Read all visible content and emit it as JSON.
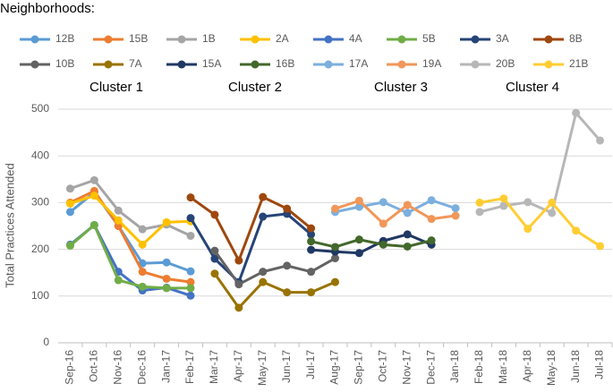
{
  "chart_data": {
    "type": "line",
    "legend_title": "Neighborhoods:",
    "annotations": [
      "Cluster 1",
      "Cluster 2",
      "Cluster 3",
      "Cluster 4"
    ],
    "y_label": "Total Practices Attended",
    "categories": [
      "Sep-16",
      "Oct-16",
      "Nov-16",
      "Dec-16",
      "Jan-17",
      "Feb-17",
      "Mar-17",
      "Apr-17",
      "May-17",
      "Jun-17",
      "Jul-17",
      "Aug-17",
      "Sep-17",
      "Oct-17",
      "Nov-17",
      "Dec-17",
      "Jan-18",
      "Feb-18",
      "Mar-18",
      "Apr-18",
      "May-18",
      "Jun-18",
      "Jul-18"
    ],
    "ylim": [
      0,
      500
    ],
    "yticks": [
      0,
      100,
      200,
      300,
      400,
      500
    ],
    "grid": true,
    "series": [
      {
        "name": "12B",
        "color": "#5b9bd5",
        "values": [
          280,
          322,
          250,
          170,
          172,
          153,
          null,
          null,
          null,
          null,
          null,
          null,
          null,
          null,
          null,
          null,
          null,
          null,
          null,
          null,
          null,
          null,
          null
        ]
      },
      {
        "name": "15B",
        "color": "#ed7d31",
        "values": [
          300,
          325,
          250,
          152,
          137,
          130,
          null,
          null,
          null,
          null,
          null,
          null,
          null,
          null,
          null,
          null,
          null,
          null,
          null,
          null,
          null,
          null,
          null
        ]
      },
      {
        "name": "1B",
        "color": "#a5a5a5",
        "values": [
          330,
          348,
          283,
          243,
          253,
          229,
          null,
          null,
          null,
          null,
          null,
          null,
          null,
          null,
          null,
          null,
          null,
          null,
          null,
          null,
          null,
          null,
          null
        ]
      },
      {
        "name": "2A",
        "color": "#ffc000",
        "values": [
          298,
          315,
          262,
          210,
          258,
          260,
          null,
          null,
          null,
          null,
          null,
          null,
          null,
          null,
          null,
          null,
          null,
          null,
          null,
          null,
          null,
          null,
          null
        ]
      },
      {
        "name": "4A",
        "color": "#4472c4",
        "values": [
          210,
          252,
          152,
          112,
          118,
          101,
          null,
          null,
          null,
          null,
          null,
          null,
          null,
          null,
          null,
          null,
          null,
          null,
          null,
          null,
          null,
          null,
          null
        ]
      },
      {
        "name": "5B",
        "color": "#70ad47",
        "values": [
          208,
          252,
          134,
          120,
          117,
          117,
          null,
          null,
          null,
          null,
          null,
          null,
          null,
          null,
          null,
          null,
          null,
          null,
          null,
          null,
          null,
          null,
          null
        ]
      },
      {
        "name": "3A",
        "color": "#264478",
        "values": [
          null,
          null,
          null,
          null,
          null,
          267,
          180,
          130,
          270,
          276,
          232,
          null,
          null,
          null,
          null,
          null,
          null,
          null,
          null,
          null,
          null,
          null,
          null
        ]
      },
      {
        "name": "8B",
        "color": "#9e480e",
        "values": [
          null,
          null,
          null,
          null,
          null,
          311,
          274,
          176,
          312,
          287,
          245,
          null,
          null,
          null,
          null,
          null,
          null,
          null,
          null,
          null,
          null,
          null,
          null
        ]
      },
      {
        "name": "10B",
        "color": "#636363",
        "values": [
          null,
          null,
          null,
          null,
          null,
          null,
          197,
          125,
          152,
          165,
          152,
          181,
          null,
          null,
          null,
          null,
          null,
          null,
          null,
          null,
          null,
          null,
          null
        ]
      },
      {
        "name": "7A",
        "color": "#997300",
        "values": [
          null,
          null,
          null,
          null,
          null,
          null,
          148,
          75,
          130,
          108,
          108,
          130,
          null,
          null,
          null,
          null,
          null,
          null,
          null,
          null,
          null,
          null,
          null
        ]
      },
      {
        "name": "15A",
        "color": "#203864",
        "values": [
          null,
          null,
          null,
          null,
          null,
          null,
          null,
          null,
          null,
          null,
          199,
          195,
          192,
          218,
          232,
          210,
          null,
          null,
          null,
          null,
          null,
          null,
          null
        ]
      },
      {
        "name": "16B",
        "color": "#43682b",
        "values": [
          null,
          null,
          null,
          null,
          null,
          null,
          null,
          null,
          null,
          null,
          217,
          205,
          221,
          210,
          206,
          219,
          null,
          null,
          null,
          null,
          null,
          null,
          null
        ]
      },
      {
        "name": "17A",
        "color": "#7cafdd",
        "values": [
          null,
          null,
          null,
          null,
          null,
          null,
          null,
          null,
          null,
          null,
          null,
          280,
          291,
          301,
          278,
          305,
          288,
          null,
          null,
          null,
          null,
          null,
          null
        ]
      },
      {
        "name": "19A",
        "color": "#f1975a",
        "values": [
          null,
          null,
          null,
          null,
          null,
          null,
          null,
          null,
          null,
          null,
          null,
          287,
          304,
          255,
          295,
          265,
          272,
          null,
          null,
          null,
          null,
          null,
          null
        ]
      },
      {
        "name": "20B",
        "color": "#b7b7b7",
        "values": [
          null,
          null,
          null,
          null,
          null,
          null,
          null,
          null,
          null,
          null,
          null,
          null,
          null,
          null,
          null,
          null,
          null,
          280,
          293,
          301,
          278,
          492,
          433
        ]
      },
      {
        "name": "21B",
        "color": "#ffcd33",
        "values": [
          null,
          null,
          null,
          null,
          null,
          null,
          null,
          null,
          null,
          null,
          null,
          null,
          null,
          null,
          null,
          null,
          null,
          300,
          309,
          244,
          300,
          240,
          207
        ]
      }
    ]
  }
}
